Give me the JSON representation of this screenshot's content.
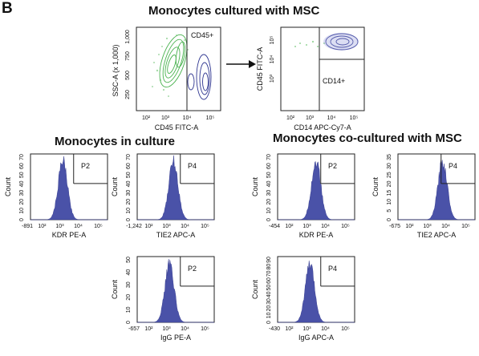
{
  "figure": {
    "panel_letter": "B",
    "headings": {
      "top": "Monocytes cultured with MSC",
      "left": "Monocytes in culture",
      "right": "Monocytes co-cultured  with MSC"
    }
  },
  "plots": {
    "scatter_gate": {
      "x_label": "CD45 FITC-A",
      "y_label": "SSC-A (x 1,000)",
      "y_ticks": [
        "250",
        "500",
        "750",
        "1,000"
      ],
      "x_ticks": [
        "10²",
        "10³",
        "10⁴",
        "10⁵"
      ],
      "gate": "CD45+"
    },
    "scatter_cd14": {
      "x_label": "CD14 APC-Cy7-A",
      "y_label": "CD45 FITC-A",
      "y_ticks": [
        "10³",
        "10⁴",
        "10⁵"
      ],
      "x_ticks": [
        "10²",
        "10³",
        "10⁴",
        "10⁵"
      ],
      "gate": "CD14+"
    },
    "hist_kdr_culture": {
      "x_label": "KDR PE-A",
      "y_label": "Count",
      "gate": "P2",
      "x_min": "-891",
      "x_ticks": [
        "10²",
        "10³",
        "10⁴",
        "10⁵"
      ],
      "y_ticks": [
        "0",
        "10",
        "20",
        "30",
        "40",
        "50",
        "60",
        "70"
      ]
    },
    "hist_tie2_culture": {
      "x_label": "TIE2 APC-A",
      "y_label": "Count",
      "gate": "P4",
      "x_min": "-1,242",
      "x_ticks": [
        "10²",
        "10³",
        "10⁴",
        "10⁵"
      ],
      "y_ticks": [
        "0",
        "10",
        "20",
        "30",
        "40",
        "50",
        "60",
        "70"
      ]
    },
    "hist_igg_pe": {
      "x_label": "IgG PE-A",
      "y_label": "Count",
      "gate": "P2",
      "x_min": "-657",
      "x_ticks": [
        "10²",
        "10³",
        "10⁴",
        "10⁵"
      ],
      "y_ticks": [
        "0",
        "10",
        "20",
        "30",
        "40",
        "50"
      ]
    },
    "hist_kdr_cocult": {
      "x_label": "KDR PE-A",
      "y_label": "Count",
      "gate": "P2",
      "x_min": "-454",
      "x_ticks": [
        "10²",
        "10³",
        "10⁴",
        "10⁵"
      ],
      "y_ticks": [
        "0",
        "10",
        "20",
        "30",
        "40",
        "50",
        "60",
        "70"
      ]
    },
    "hist_tie2_cocult": {
      "x_label": "TIE2 APC-A",
      "y_label": "Count",
      "gate": "P4",
      "x_min": "-675",
      "x_ticks": [
        "10²",
        "10³",
        "10⁴",
        "10⁵"
      ],
      "y_ticks": [
        "0",
        "5",
        "10",
        "15",
        "20",
        "25",
        "30",
        "35"
      ]
    },
    "hist_igg_apc": {
      "x_label": "IgG APC-A",
      "y_label": "Count",
      "gate": "P4",
      "x_min": "-430",
      "x_ticks": [
        "10²",
        "10³",
        "10⁴",
        "10⁵"
      ],
      "y_ticks": [
        "0",
        "10",
        "20",
        "30",
        "40",
        "50",
        "60",
        "70",
        "80",
        "90"
      ]
    }
  },
  "colors": {
    "histogram_fill": "#4a52a8",
    "contour_green": "#49b24f",
    "contour_blue": "#2e3590",
    "axis": "#222222"
  }
}
